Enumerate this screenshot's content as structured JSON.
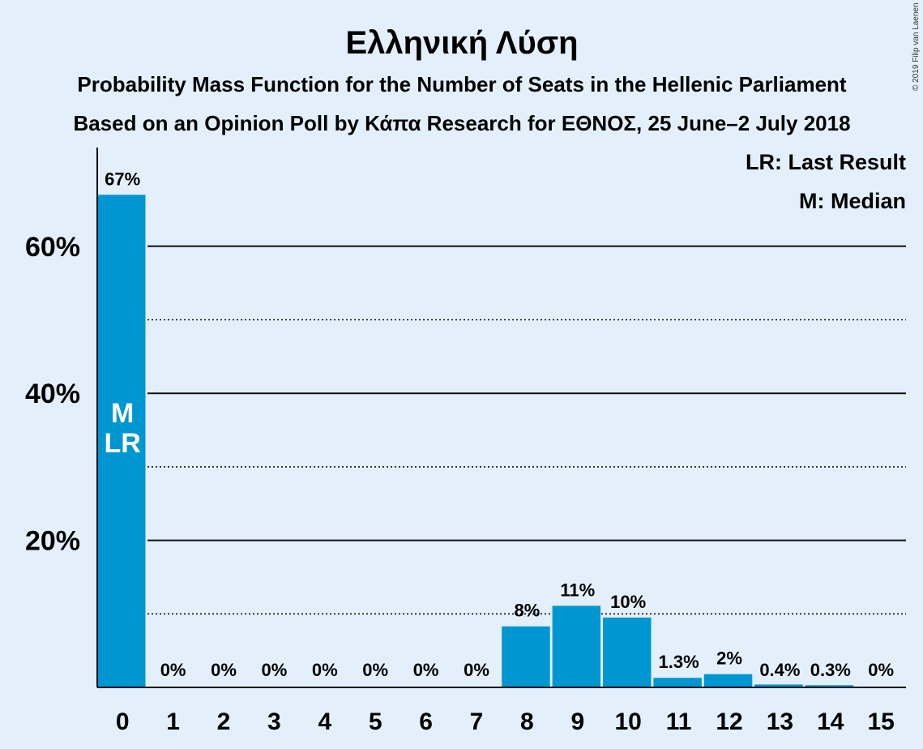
{
  "chart_data": {
    "type": "bar",
    "title": "Ελληνική Λύση",
    "subtitle": "Probability Mass Function for the Number of Seats in the Hellenic Parliament",
    "subtitle2": "Based on an Opinion Poll by Κάπα Research for ΕΘΝΟΣ, 25 June–2 July 2018",
    "copyright": "© 2019 Filip van Laenen",
    "xlabel": "",
    "ylabel": "",
    "categories": [
      "0",
      "1",
      "2",
      "3",
      "4",
      "5",
      "6",
      "7",
      "8",
      "9",
      "10",
      "11",
      "12",
      "13",
      "14",
      "15"
    ],
    "values": [
      67,
      0,
      0,
      0,
      0,
      0,
      0,
      0,
      8.3,
      11.1,
      9.5,
      1.3,
      1.8,
      0.4,
      0.3,
      0
    ],
    "data_labels": [
      "67%",
      "0%",
      "0%",
      "0%",
      "0%",
      "0%",
      "0%",
      "0%",
      "8%",
      "11%",
      "10%",
      "1.3%",
      "2%",
      "0.4%",
      "0.3%",
      "0%"
    ],
    "ylim": [
      0,
      70
    ],
    "yticks": [
      20,
      40,
      60
    ],
    "ytick_labels": [
      "20%",
      "40%",
      "60%"
    ],
    "minor_gridlines": [
      10,
      30,
      50
    ],
    "bar_color": "#0096d1",
    "markers": [
      {
        "category": "0",
        "lines": [
          "M",
          "LR"
        ]
      }
    ],
    "legend": [
      "LR: Last Result",
      "M: Median"
    ],
    "legend_position": "top-right"
  }
}
